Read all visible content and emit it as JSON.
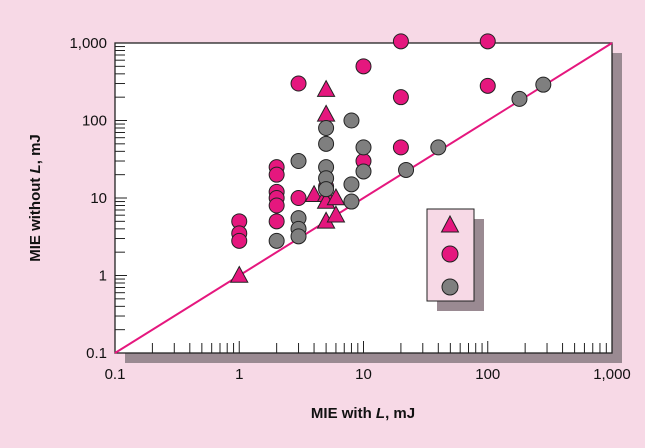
{
  "chart_data": {
    "type": "scatter",
    "title": "",
    "xlabel": "MIE with L, mJ",
    "ylabel": "MIE without L, mJ",
    "xlabel_parts": [
      "MIE with ",
      "L",
      ", mJ"
    ],
    "ylabel_parts": [
      "MIE without ",
      "L",
      ", mJ"
    ],
    "xscale": "log",
    "yscale": "log",
    "xlim": [
      0.1,
      1000
    ],
    "ylim": [
      0.1,
      1000
    ],
    "x_ticks": [
      "0.1",
      "1",
      "10",
      "100",
      "1,000"
    ],
    "y_ticks": [
      "0.1",
      "1",
      "10",
      "100",
      "1,000"
    ],
    "grid": false,
    "legend_position": "lower-right",
    "reference_line": {
      "description": "y = x",
      "color": "#e5177e"
    },
    "colors": {
      "background": "#f7d9e6",
      "plot_background": "#ffffff",
      "magenta": "#e5177e",
      "gray": "#7f7f7f",
      "legend_box": "#f7d9e6",
      "legend_shadow": "#9a8a92"
    },
    "series": [
      {
        "marker": "triangle",
        "color": "#e5177e",
        "points": [
          [
            1,
            1
          ],
          [
            5,
            250
          ],
          [
            5,
            120
          ],
          [
            4,
            11
          ],
          [
            5,
            11
          ],
          [
            5,
            9
          ],
          [
            6,
            10
          ],
          [
            5,
            5
          ],
          [
            6,
            6
          ]
        ]
      },
      {
        "marker": "circle",
        "color": "#e5177e",
        "points": [
          [
            1,
            5
          ],
          [
            1,
            3.5
          ],
          [
            1,
            2.8
          ],
          [
            2,
            25
          ],
          [
            2,
            20
          ],
          [
            2,
            12
          ],
          [
            2,
            10
          ],
          [
            2,
            8
          ],
          [
            2,
            5
          ],
          [
            3,
            300
          ],
          [
            3,
            10
          ],
          [
            5,
            14
          ],
          [
            10,
            500
          ],
          [
            10,
            30
          ],
          [
            20,
            1050
          ],
          [
            20,
            200
          ],
          [
            20,
            45
          ],
          [
            100,
            1050
          ],
          [
            100,
            280
          ]
        ]
      },
      {
        "marker": "circle",
        "color": "#7f7f7f",
        "points": [
          [
            2,
            2.8
          ],
          [
            3,
            30
          ],
          [
            3,
            5.5
          ],
          [
            3,
            4
          ],
          [
            3,
            3.2
          ],
          [
            5,
            80
          ],
          [
            5,
            50
          ],
          [
            5,
            25
          ],
          [
            5,
            18
          ],
          [
            5,
            13
          ],
          [
            8,
            100
          ],
          [
            8,
            15
          ],
          [
            8,
            9
          ],
          [
            10,
            45
          ],
          [
            10,
            22
          ],
          [
            22,
            23
          ],
          [
            40,
            45
          ],
          [
            180,
            190
          ],
          [
            280,
            290
          ]
        ]
      }
    ]
  }
}
